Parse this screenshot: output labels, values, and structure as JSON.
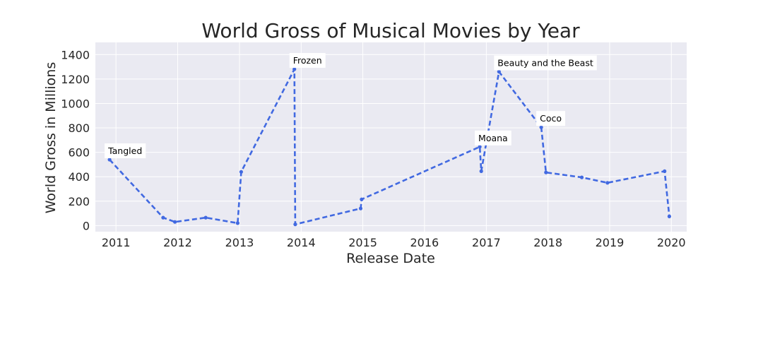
{
  "chart_data": {
    "type": "line",
    "title": "World Gross of Musical Movies by Year",
    "xlabel": "Release Date",
    "ylabel": "World Gross in Millions",
    "xlim": [
      "2010-09-01",
      "2020-04-01"
    ],
    "ylim": [
      -50,
      1500
    ],
    "x_ticks": [
      "2011",
      "2012",
      "2013",
      "2014",
      "2015",
      "2016",
      "2017",
      "2018",
      "2019",
      "2020"
    ],
    "y_ticks": [
      0,
      200,
      400,
      600,
      800,
      1000,
      1200,
      1400
    ],
    "grid": true,
    "line_style": "dashed",
    "color": "#4169E1",
    "background": "#EAEAF2",
    "series": [
      {
        "points": [
          {
            "x": "2010-11-24",
            "y": 540
          },
          {
            "x": "2011-10-07",
            "y": 65
          },
          {
            "x": "2011-12-16",
            "y": 30
          },
          {
            "x": "2012-06-15",
            "y": 65
          },
          {
            "x": "2012-12-21",
            "y": 20
          },
          {
            "x": "2013-01-11",
            "y": 440
          },
          {
            "x": "2013-11-22",
            "y": 1280
          },
          {
            "x": "2013-11-27",
            "y": 10
          },
          {
            "x": "2014-12-19",
            "y": 140
          },
          {
            "x": "2014-12-25",
            "y": 215
          },
          {
            "x": "2016-11-23",
            "y": 645
          },
          {
            "x": "2016-12-02",
            "y": 445
          },
          {
            "x": "2017-03-17",
            "y": 1260
          },
          {
            "x": "2017-11-22",
            "y": 805
          },
          {
            "x": "2017-12-20",
            "y": 435
          },
          {
            "x": "2018-07-20",
            "y": 395
          },
          {
            "x": "2018-12-19",
            "y": 350
          },
          {
            "x": "2019-11-22",
            "y": 445
          },
          {
            "x": "2019-12-20",
            "y": 75
          }
        ]
      }
    ],
    "annotations": [
      {
        "label": "Tangled",
        "x": "2010-11-24",
        "y": 540
      },
      {
        "label": "Frozen",
        "x": "2013-11-22",
        "y": 1280
      },
      {
        "label": "Moana",
        "x": "2016-11-23",
        "y": 645
      },
      {
        "label": "Beauty and the Beast",
        "x": "2017-03-17",
        "y": 1260
      },
      {
        "label": "Coco",
        "x": "2017-11-22",
        "y": 805
      }
    ]
  }
}
